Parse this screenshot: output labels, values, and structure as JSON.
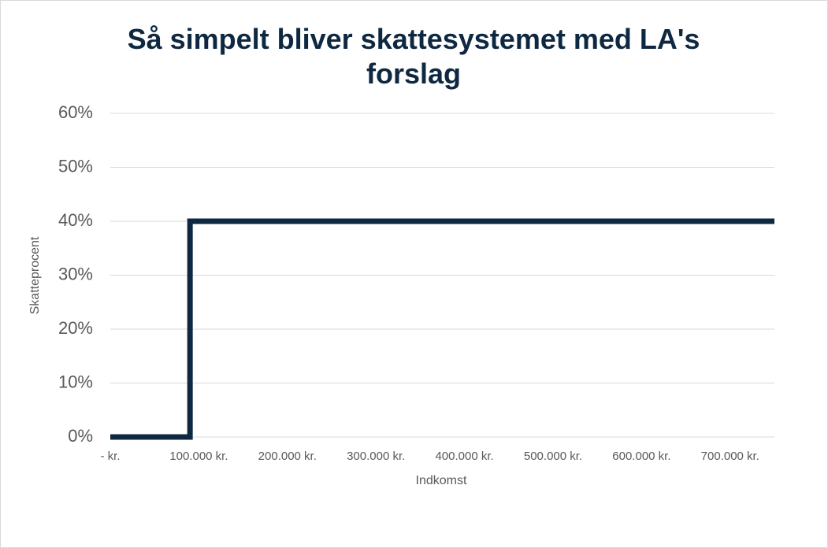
{
  "chart_data": {
    "type": "line",
    "title": "Så simpelt bliver skattesystemet med LA's forslag",
    "x_label": "Indkomst",
    "y_label": "Skatteprocent",
    "series": [
      {
        "color": "#0f2841",
        "x": [
          0,
          90000,
          90000,
          750000
        ],
        "values": [
          0,
          0,
          40,
          40
        ]
      }
    ],
    "xlim": [
      0,
      750000
    ],
    "xticks": [
      {
        "value": 0,
        "label": "-   kr."
      },
      {
        "value": 100000,
        "label": "100.000 kr."
      },
      {
        "value": 200000,
        "label": "200.000 kr."
      },
      {
        "value": 300000,
        "label": "300.000 kr."
      },
      {
        "value": 400000,
        "label": "400.000 kr."
      },
      {
        "value": 500000,
        "label": "500.000 kr."
      },
      {
        "value": 600000,
        "label": "600.000 kr."
      },
      {
        "value": 700000,
        "label": "700.000 kr."
      }
    ],
    "ylim": [
      0,
      60
    ],
    "yticks": [
      {
        "value": 0,
        "label": "0%"
      },
      {
        "value": 10,
        "label": "10%"
      },
      {
        "value": 20,
        "label": "20%"
      },
      {
        "value": 30,
        "label": "30%"
      },
      {
        "value": 40,
        "label": "40%"
      },
      {
        "value": 50,
        "label": "50%"
      },
      {
        "value": 60,
        "label": "60%"
      }
    ],
    "grid": true
  }
}
